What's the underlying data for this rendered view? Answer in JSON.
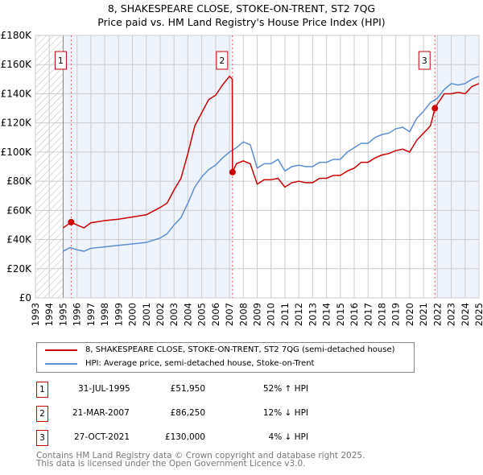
{
  "chart_data": {
    "type": "line",
    "title": "8, SHAKESPEARE CLOSE, STOKE-ON-TRENT, ST2 7QG",
    "subtitle": "Price paid vs. HM Land Registry's House Price Index (HPI)",
    "xlim": [
      1993,
      2025
    ],
    "ylim": [
      0,
      180000
    ],
    "x_ticks": [
      "1993",
      "1994",
      "1995",
      "1996",
      "1997",
      "1998",
      "1999",
      "2000",
      "2001",
      "2002",
      "2003",
      "2004",
      "2005",
      "2006",
      "2007",
      "2008",
      "2009",
      "2010",
      "2011",
      "2012",
      "2013",
      "2014",
      "2015",
      "2016",
      "2017",
      "2018",
      "2019",
      "2020",
      "2021",
      "2022",
      "2023",
      "2024",
      "2025"
    ],
    "y_ticks": [
      {
        "v": 0,
        "label": "£0"
      },
      {
        "v": 20000,
        "label": "£20K"
      },
      {
        "v": 40000,
        "label": "£40K"
      },
      {
        "v": 60000,
        "label": "£60K"
      },
      {
        "v": 80000,
        "label": "£80K"
      },
      {
        "v": 100000,
        "label": "£100K"
      },
      {
        "v": 120000,
        "label": "£120K"
      },
      {
        "v": 140000,
        "label": "£140K"
      },
      {
        "v": 160000,
        "label": "£160K"
      },
      {
        "v": 180000,
        "label": "£180K"
      }
    ],
    "grid": true,
    "series": [
      {
        "name": "8, SHAKESPEARE CLOSE, STOKE-ON-TRENT, ST2 7QG (semi-detached house)",
        "color": "#cc0000",
        "x": [
          1995,
          1995.58,
          1996,
          1996.5,
          1997,
          1998,
          1999,
          2000,
          2001,
          2002,
          2002.5,
          2003,
          2003.5,
          2004,
          2004.5,
          2005,
          2005.5,
          2006,
          2006.5,
          2007,
          2007.2,
          2007.22,
          2007.5,
          2008,
          2008.5,
          2009,
          2009.5,
          2010,
          2010.5,
          2011,
          2011.5,
          2012,
          2012.5,
          2013,
          2013.5,
          2014,
          2014.5,
          2015,
          2015.5,
          2016,
          2016.5,
          2017,
          2017.5,
          2018,
          2018.5,
          2019,
          2019.5,
          2020,
          2020.5,
          2021,
          2021.5,
          2021.82,
          2022,
          2022.5,
          2023,
          2023.5,
          2024,
          2024.5,
          2025
        ],
        "y": [
          48000,
          51950,
          50000,
          48000,
          51500,
          53000,
          54000,
          55500,
          57000,
          62000,
          65000,
          74000,
          82000,
          99000,
          118000,
          127000,
          136000,
          139000,
          146000,
          152000,
          150000,
          86250,
          92000,
          94000,
          92000,
          78000,
          81000,
          81000,
          82000,
          76000,
          79000,
          80000,
          79000,
          79000,
          82000,
          82000,
          84000,
          84000,
          87000,
          89000,
          93000,
          93000,
          96000,
          98000,
          99000,
          101000,
          102000,
          100000,
          108000,
          113000,
          118000,
          130000,
          133000,
          140000,
          140000,
          141000,
          140000,
          145000,
          147000
        ]
      },
      {
        "name": "HPI: Average price, semi-detached house, Stoke-on-Trent",
        "color": "#5b8fd4",
        "x": [
          1995,
          1995.5,
          1996,
          1996.5,
          1997,
          1998,
          1999,
          2000,
          2001,
          2002,
          2002.5,
          2003,
          2003.5,
          2004,
          2004.5,
          2005,
          2005.5,
          2006,
          2006.5,
          2007,
          2007.5,
          2008,
          2008.5,
          2009,
          2009.5,
          2010,
          2010.5,
          2011,
          2011.5,
          2012,
          2012.5,
          2013,
          2013.5,
          2014,
          2014.5,
          2015,
          2015.5,
          2016,
          2016.5,
          2017,
          2017.5,
          2018,
          2018.5,
          2019,
          2019.5,
          2020,
          2020.5,
          2021,
          2021.5,
          2022,
          2022.5,
          2023,
          2023.5,
          2024,
          2024.5,
          2025
        ],
        "y": [
          32000,
          34500,
          33000,
          32000,
          34000,
          35000,
          36000,
          37000,
          38000,
          41000,
          44000,
          50000,
          55000,
          65000,
          76000,
          83000,
          88000,
          91000,
          96000,
          100000,
          103000,
          107000,
          105000,
          89000,
          92000,
          92000,
          95000,
          87000,
          90000,
          91000,
          90000,
          90000,
          93000,
          93000,
          95000,
          95000,
          100000,
          103000,
          106000,
          106000,
          110000,
          112000,
          113000,
          116000,
          117000,
          114000,
          123000,
          128000,
          134000,
          137000,
          143000,
          147000,
          146000,
          147000,
          150000,
          152000
        ]
      }
    ],
    "sales": [
      {
        "n": "1",
        "date": "31-JUL-1995",
        "x": 1995.58,
        "price": "£51,950",
        "price_v": 51950,
        "hpi": "52% ↑ HPI"
      },
      {
        "n": "2",
        "date": "21-MAR-2007",
        "x": 2007.22,
        "price": "£86,250",
        "price_v": 86250,
        "hpi": "12% ↓ HPI"
      },
      {
        "n": "3",
        "date": "27-OCT-2021",
        "x": 2021.82,
        "price": "£130,000",
        "price_v": 130000,
        "hpi": "4% ↓ HPI"
      }
    ],
    "legend_placement": "below"
  },
  "footer": {
    "line1": "Contains HM Land Registry data © Crown copyright and database right 2025.",
    "line2": "This data is licensed under the Open Government Licence v3.0."
  }
}
